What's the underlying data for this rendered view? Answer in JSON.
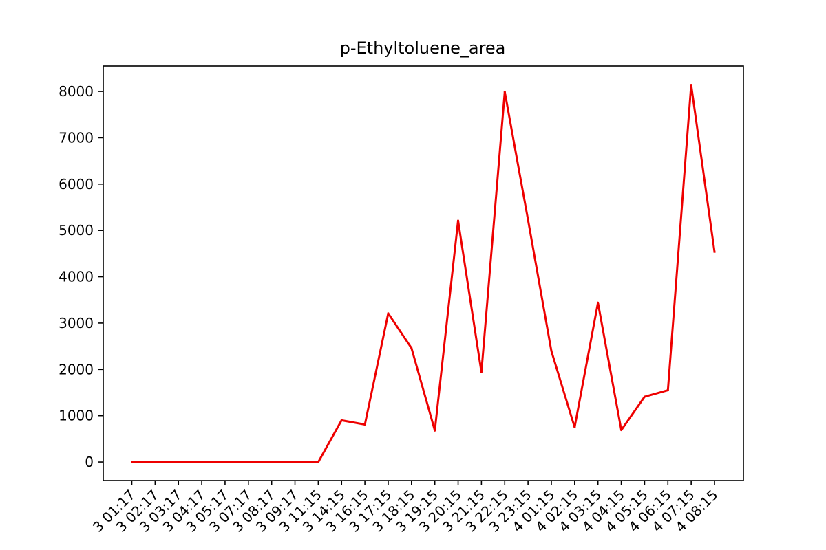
{
  "chart_data": {
    "type": "line",
    "title": "p-Ethyltoluene_area",
    "xlabel": "",
    "ylabel": "",
    "x": [
      "3 01:17",
      "3 02:17",
      "3 03:17",
      "3 04:17",
      "3 05:17",
      "3 07:17",
      "3 08:17",
      "3 09:17",
      "3 11:15",
      "3 14:15",
      "3 16:15",
      "3 17:15",
      "3 18:15",
      "3 19:15",
      "3 20:15",
      "3 21:15",
      "3 22:15",
      "3 23:15",
      "4 01:15",
      "4 02:15",
      "4 03:15",
      "4 04:15",
      "4 05:15",
      "4 06:15",
      "4 07:15",
      "4 08:15"
    ],
    "series": [
      {
        "values": [
          0,
          0,
          0,
          0,
          0,
          0,
          0,
          0,
          0,
          900,
          810,
          3210,
          2460,
          680,
          5210,
          1940,
          7990,
          5230,
          2400,
          750,
          3440,
          690,
          1410,
          1550,
          8140,
          4540
        ],
        "color": "#ee0000"
      }
    ],
    "ylim": [
      -400,
      8550
    ],
    "yticks": [
      0,
      1000,
      2000,
      3000,
      4000,
      5000,
      6000,
      7000,
      8000
    ],
    "grid": false,
    "legend": "none"
  }
}
